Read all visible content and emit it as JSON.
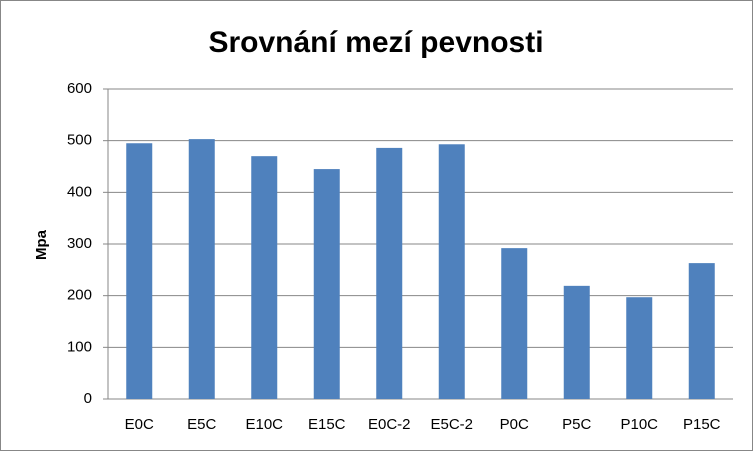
{
  "chart_data": {
    "type": "bar",
    "title": "Srovnání mezí pevnosti",
    "y_label": "Mpa",
    "categories": [
      "E0C",
      "E5C",
      "E10C",
      "E15C",
      "E0C-2",
      "E5C-2",
      "P0C",
      "P5C",
      "P10C",
      "P15C"
    ],
    "values": [
      495,
      503,
      470,
      445,
      486,
      493,
      292,
      219,
      197,
      263
    ],
    "color": "#4f81bd",
    "ylim": [
      0,
      600
    ],
    "yticks": [
      0,
      100,
      200,
      300,
      400,
      500,
      600
    ],
    "grid": true
  }
}
